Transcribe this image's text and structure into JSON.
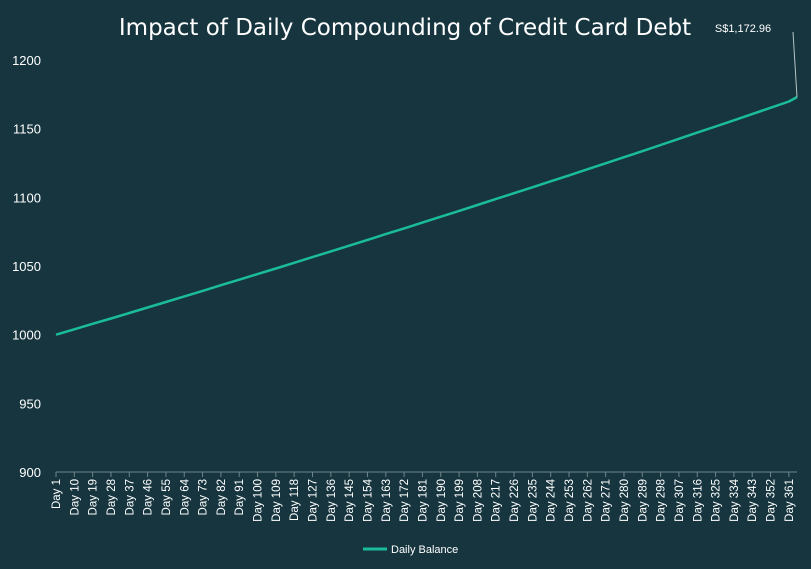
{
  "chart_data": {
    "type": "line",
    "title": "Impact of Daily Compounding of Credit Card Debt",
    "xlabel": "",
    "ylabel": "",
    "ylim": [
      900,
      1200
    ],
    "yticks": [
      900,
      950,
      1000,
      1050,
      1100,
      1150,
      1200
    ],
    "x_tick_labels": [
      "Day 1",
      "Day 10",
      "Day 19",
      "Day 28",
      "Day 37",
      "Day 46",
      "Day 55",
      "Day 64",
      "Day 73",
      "Day 82",
      "Day 91",
      "Day 100",
      "Day 109",
      "Day 118",
      "Day 127",
      "Day 136",
      "Day 145",
      "Day 154",
      "Day 163",
      "Day 172",
      "Day 181",
      "Day 190",
      "Day 199",
      "Day 208",
      "Day 217",
      "Day 226",
      "Day 235",
      "Day 244",
      "Day 253",
      "Day 262",
      "Day 271",
      "Day 280",
      "Day 289",
      "Day 298",
      "Day 307",
      "Day 316",
      "Day 325",
      "Day 334",
      "Day 343",
      "Day 352",
      "Day 361"
    ],
    "x_range": [
      1,
      365
    ],
    "grid": false,
    "legend_position": "bottom",
    "series": [
      {
        "name": "Daily Balance",
        "color": "#1abc9c",
        "x": [
          "Day 1",
          "Day 10",
          "Day 19",
          "Day 28",
          "Day 37",
          "Day 46",
          "Day 55",
          "Day 64",
          "Day 73",
          "Day 82",
          "Day 91",
          "Day 100",
          "Day 109",
          "Day 118",
          "Day 127",
          "Day 136",
          "Day 145",
          "Day 154",
          "Day 163",
          "Day 172",
          "Day 181",
          "Day 190",
          "Day 199",
          "Day 208",
          "Day 217",
          "Day 226",
          "Day 235",
          "Day 244",
          "Day 253",
          "Day 262",
          "Day 271",
          "Day 280",
          "Day 289",
          "Day 298",
          "Day 307",
          "Day 316",
          "Day 325",
          "Day 334",
          "Day 343",
          "Day 352",
          "Day 361",
          "Day 365"
        ],
        "values": [
          1000,
          1003.9,
          1007.9,
          1011.8,
          1015.8,
          1019.8,
          1023.8,
          1027.9,
          1031.9,
          1036.0,
          1040.0,
          1044.1,
          1048.2,
          1052.3,
          1056.5,
          1060.6,
          1064.8,
          1069.0,
          1073.2,
          1077.4,
          1081.6,
          1085.9,
          1090.1,
          1094.4,
          1098.7,
          1103.0,
          1107.3,
          1111.7,
          1116.0,
          1120.4,
          1124.8,
          1129.2,
          1133.6,
          1138.1,
          1142.6,
          1147.1,
          1151.6,
          1156.1,
          1160.6,
          1165.2,
          1169.8,
          1172.96
        ]
      }
    ],
    "annotations": [
      {
        "text": "S$1,172.96",
        "x": "Day 365",
        "y": 1172.96
      }
    ]
  }
}
